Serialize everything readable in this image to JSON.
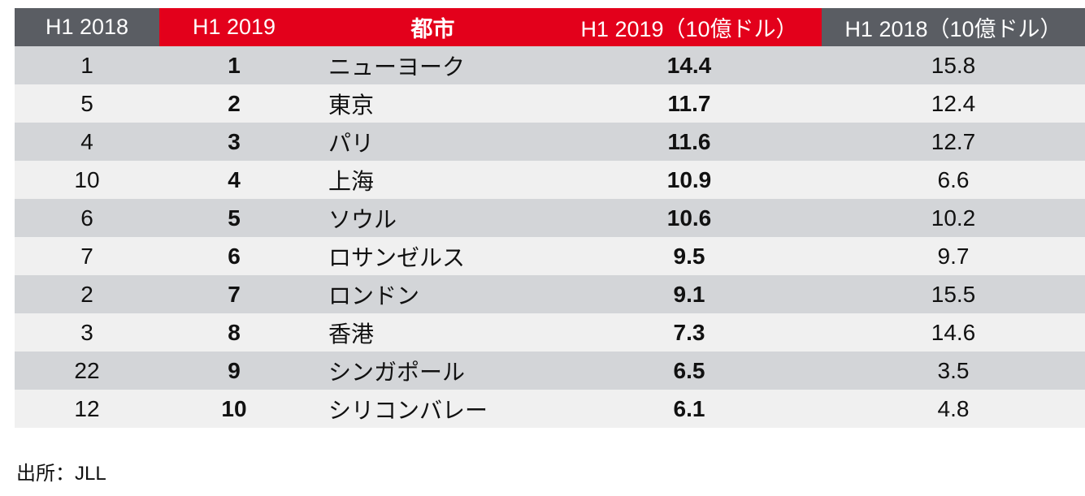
{
  "chart_data": {
    "type": "table",
    "columns": [
      "H1 2018",
      "H1 2019",
      "都市",
      "H1 2019（10億ドル）",
      "H1 2018（10億ドル）"
    ],
    "rows": [
      {
        "rank_2018": "1",
        "rank_2019": "1",
        "city": "ニューヨーク",
        "value_2019": "14.4",
        "value_2018": "15.8"
      },
      {
        "rank_2018": "5",
        "rank_2019": "2",
        "city": "東京",
        "value_2019": "11.7",
        "value_2018": "12.4"
      },
      {
        "rank_2018": "4",
        "rank_2019": "3",
        "city": "パリ",
        "value_2019": "11.6",
        "value_2018": "12.7"
      },
      {
        "rank_2018": "10",
        "rank_2019": "4",
        "city": "上海",
        "value_2019": "10.9",
        "value_2018": "6.6"
      },
      {
        "rank_2018": "6",
        "rank_2019": "5",
        "city": "ソウル",
        "value_2019": "10.6",
        "value_2018": "10.2"
      },
      {
        "rank_2018": "7",
        "rank_2019": "6",
        "city": "ロサンゼルス",
        "value_2019": "9.5",
        "value_2018": "9.7"
      },
      {
        "rank_2018": "2",
        "rank_2019": "7",
        "city": "ロンドン",
        "value_2019": "9.1",
        "value_2018": "15.5"
      },
      {
        "rank_2018": "3",
        "rank_2019": "8",
        "city": "香港",
        "value_2019": "7.3",
        "value_2018": "14.6"
      },
      {
        "rank_2018": "22",
        "rank_2019": "9",
        "city": "シンガポール",
        "value_2019": "6.5",
        "value_2018": "3.5"
      },
      {
        "rank_2018": "12",
        "rank_2019": "10",
        "city": "シリコンバレー",
        "value_2019": "6.1",
        "value_2018": "4.8"
      }
    ],
    "source": "出所：JLL"
  },
  "colors": {
    "header_dark": "#5a5d63",
    "header_red": "#e3001b",
    "row_odd": "#d3d5d8",
    "row_even": "#f0f0f0"
  }
}
